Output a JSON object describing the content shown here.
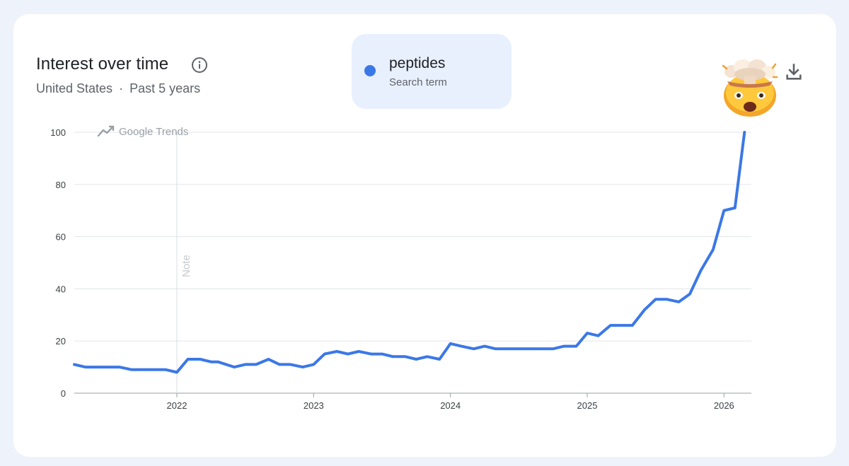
{
  "header": {
    "title": "Interest over time",
    "region": "United States",
    "separator": "·",
    "period": "Past 5 years"
  },
  "legend": {
    "term": "peptides",
    "subtitle": "Search term",
    "color": "#3b78e7"
  },
  "icons": {
    "info": "info-icon",
    "download": "download-icon",
    "emoji": "exploding-head-emoji"
  },
  "chart_data": {
    "type": "line",
    "watermark": "Google Trends",
    "note_label": "Note",
    "note_year": 2022,
    "ylim": [
      0,
      100
    ],
    "yticks": [
      0,
      20,
      40,
      60,
      80,
      100
    ],
    "xticks": [
      2022,
      2023,
      2024,
      2025,
      2026
    ],
    "xlim": [
      2021.25,
      2026.2
    ],
    "grid": true,
    "series": [
      {
        "name": "peptides",
        "color": "#3b78e7",
        "x": [
          2021.25,
          2021.33,
          2021.5,
          2021.58,
          2021.67,
          2021.8,
          2021.92,
          2022.0,
          2022.08,
          2022.17,
          2022.25,
          2022.3,
          2022.42,
          2022.5,
          2022.58,
          2022.67,
          2022.75,
          2022.83,
          2022.92,
          2023.0,
          2023.08,
          2023.17,
          2023.25,
          2023.33,
          2023.42,
          2023.5,
          2023.58,
          2023.67,
          2023.75,
          2023.83,
          2023.92,
          2024.0,
          2024.08,
          2024.17,
          2024.25,
          2024.33,
          2024.5,
          2024.67,
          2024.75,
          2024.83,
          2024.92,
          2025.0,
          2025.08,
          2025.17,
          2025.25,
          2025.33,
          2025.42,
          2025.5,
          2025.58,
          2025.67,
          2025.75,
          2025.83,
          2025.92,
          2026.0,
          2026.08,
          2026.15
        ],
        "values": [
          11,
          10,
          10,
          10,
          9,
          9,
          9,
          8,
          13,
          13,
          12,
          12,
          10,
          11,
          11,
          13,
          11,
          11,
          10,
          11,
          15,
          16,
          15,
          16,
          15,
          15,
          14,
          14,
          13,
          14,
          13,
          19,
          18,
          17,
          18,
          17,
          17,
          17,
          17,
          18,
          18,
          23,
          22,
          26,
          26,
          26,
          32,
          36,
          36,
          35,
          38,
          47,
          55,
          70,
          71,
          100
        ]
      }
    ]
  }
}
